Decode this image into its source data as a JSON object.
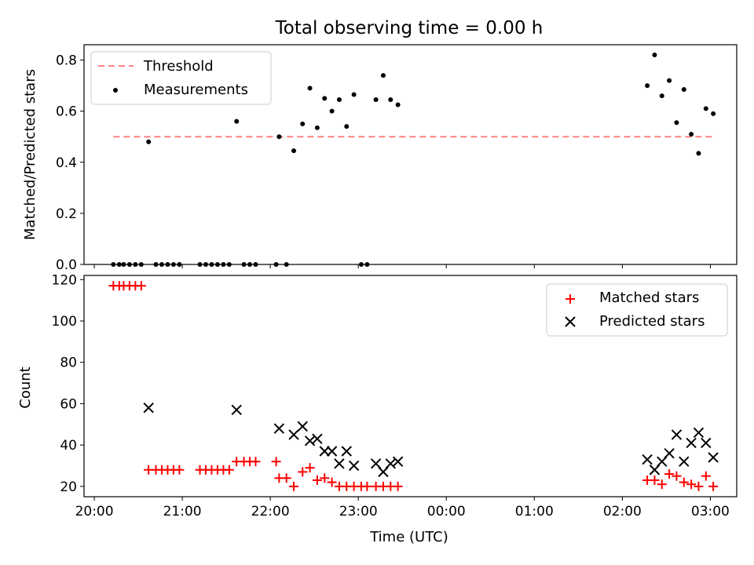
{
  "chart_data": [
    {
      "type": "scatter",
      "title": "Total observing time = 0.00 h",
      "ylabel": "Matched/Predicted stars",
      "xlabel": "",
      "ylim": [
        0,
        0.86
      ],
      "yticks": [
        0.0,
        0.2,
        0.4,
        0.6,
        0.8
      ],
      "ytick_labels": [
        "0.0",
        "0.2",
        "0.4",
        "0.6",
        "0.8"
      ],
      "xticks_minutes": [
        0,
        60,
        120,
        180,
        240,
        300,
        360,
        420
      ],
      "xlim_minutes": [
        -7,
        438
      ],
      "threshold": {
        "name": "Threshold",
        "value": 0.5,
        "x_range_minutes": [
          13,
          423
        ],
        "color": "#ff8080"
      },
      "legend": {
        "position": "top-left",
        "entries": [
          "Threshold",
          "Measurements"
        ]
      },
      "series": [
        {
          "name": "Measurements",
          "color": "#000000",
          "marker": "dot",
          "points": [
            [
              13,
              0
            ],
            [
              17,
              0
            ],
            [
              20,
              0
            ],
            [
              24,
              0
            ],
            [
              28,
              0
            ],
            [
              32,
              0
            ],
            [
              37,
              0.48
            ],
            [
              42,
              0
            ],
            [
              46,
              0
            ],
            [
              50,
              0
            ],
            [
              54,
              0
            ],
            [
              58,
              0
            ],
            [
              72,
              0
            ],
            [
              76,
              0
            ],
            [
              80,
              0
            ],
            [
              84,
              0
            ],
            [
              88,
              0
            ],
            [
              92,
              0
            ],
            [
              97,
              0.56
            ],
            [
              102,
              0
            ],
            [
              106,
              0
            ],
            [
              110,
              0
            ],
            [
              124,
              0
            ],
            [
              126,
              0.5
            ],
            [
              131,
              0
            ],
            [
              136,
              0.445
            ],
            [
              142,
              0.55
            ],
            [
              147,
              0.69
            ],
            [
              152,
              0.535
            ],
            [
              157,
              0.65
            ],
            [
              162,
              0.6
            ],
            [
              167,
              0.645
            ],
            [
              172,
              0.54
            ],
            [
              177,
              0.665
            ],
            [
              182,
              0
            ],
            [
              186,
              0
            ],
            [
              192,
              0.645
            ],
            [
              197,
              0.74
            ],
            [
              202,
              0.645
            ],
            [
              207,
              0.625
            ],
            [
              377,
              0.7
            ],
            [
              382,
              0.82
            ],
            [
              387,
              0.66
            ],
            [
              392,
              0.72
            ],
            [
              397,
              0.555
            ],
            [
              402,
              0.685
            ],
            [
              407,
              0.51
            ],
            [
              412,
              0.435
            ],
            [
              417,
              0.61
            ],
            [
              422,
              0.59
            ]
          ]
        }
      ]
    },
    {
      "type": "scatter",
      "title": "",
      "ylabel": "Count",
      "xlabel": "Time (UTC)",
      "ylim": [
        15,
        122
      ],
      "yticks": [
        20,
        40,
        60,
        80,
        100,
        120
      ],
      "ytick_labels": [
        "20",
        "40",
        "60",
        "80",
        "100",
        "120"
      ],
      "xticks_minutes": [
        0,
        60,
        120,
        180,
        240,
        300,
        360,
        420
      ],
      "xtick_labels": [
        "20:00",
        "21:00",
        "22:00",
        "23:00",
        "00:00",
        "01:00",
        "02:00",
        "03:00"
      ],
      "xlim_minutes": [
        -7,
        438
      ],
      "legend": {
        "position": "top-right",
        "entries": [
          "Matched stars",
          "Predicted stars"
        ]
      },
      "series": [
        {
          "name": "Matched stars",
          "color": "#ff0000",
          "marker": "plus",
          "points": [
            [
              13,
              117
            ],
            [
              17,
              117
            ],
            [
              20,
              117
            ],
            [
              24,
              117
            ],
            [
              28,
              117
            ],
            [
              32,
              117
            ],
            [
              37,
              28
            ],
            [
              42,
              28
            ],
            [
              46,
              28
            ],
            [
              50,
              28
            ],
            [
              54,
              28
            ],
            [
              58,
              28
            ],
            [
              72,
              28
            ],
            [
              76,
              28
            ],
            [
              80,
              28
            ],
            [
              84,
              28
            ],
            [
              88,
              28
            ],
            [
              92,
              28
            ],
            [
              97,
              32
            ],
            [
              102,
              32
            ],
            [
              106,
              32
            ],
            [
              110,
              32
            ],
            [
              124,
              32
            ],
            [
              126,
              24
            ],
            [
              131,
              24
            ],
            [
              136,
              20
            ],
            [
              142,
              27
            ],
            [
              147,
              29
            ],
            [
              152,
              23
            ],
            [
              157,
              24
            ],
            [
              162,
              22
            ],
            [
              167,
              20
            ],
            [
              172,
              20
            ],
            [
              177,
              20
            ],
            [
              182,
              20
            ],
            [
              186,
              20
            ],
            [
              192,
              20
            ],
            [
              197,
              20
            ],
            [
              202,
              20
            ],
            [
              207,
              20
            ],
            [
              377,
              23
            ],
            [
              382,
              23
            ],
            [
              387,
              21
            ],
            [
              392,
              26
            ],
            [
              397,
              25
            ],
            [
              402,
              22
            ],
            [
              407,
              21
            ],
            [
              412,
              20
            ],
            [
              417,
              25
            ],
            [
              422,
              20
            ]
          ]
        },
        {
          "name": "Predicted stars",
          "color": "#000000",
          "marker": "x",
          "points": [
            [
              37,
              58
            ],
            [
              97,
              57
            ],
            [
              126,
              48
            ],
            [
              136,
              45
            ],
            [
              142,
              49
            ],
            [
              147,
              42
            ],
            [
              152,
              43
            ],
            [
              157,
              37
            ],
            [
              162,
              37
            ],
            [
              167,
              31
            ],
            [
              172,
              37
            ],
            [
              177,
              30
            ],
            [
              192,
              31
            ],
            [
              197,
              27
            ],
            [
              202,
              31
            ],
            [
              207,
              32
            ],
            [
              377,
              33
            ],
            [
              382,
              28
            ],
            [
              387,
              32
            ],
            [
              392,
              36
            ],
            [
              397,
              45
            ],
            [
              402,
              32
            ],
            [
              407,
              41
            ],
            [
              412,
              46
            ],
            [
              417,
              41
            ],
            [
              422,
              34
            ]
          ]
        }
      ]
    }
  ]
}
